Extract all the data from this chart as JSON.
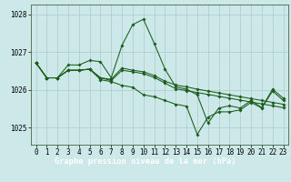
{
  "title": "Graphe pression niveau de la mer (hPa)",
  "bg_color": "#cce8e8",
  "grid_color": "#aacccc",
  "line_color": "#1a5c1a",
  "xlim": [
    -0.5,
    23.5
  ],
  "ylim": [
    1024.55,
    1028.25
  ],
  "yticks": [
    1025,
    1026,
    1027,
    1028
  ],
  "xticks": [
    0,
    1,
    2,
    3,
    4,
    5,
    6,
    7,
    8,
    9,
    10,
    11,
    12,
    13,
    14,
    15,
    16,
    17,
    18,
    19,
    20,
    21,
    22,
    23
  ],
  "series": [
    [
      1026.72,
      1026.32,
      1026.32,
      1026.66,
      1026.66,
      1026.78,
      1026.75,
      1026.32,
      1027.18,
      1027.73,
      1027.87,
      1027.23,
      1026.55,
      1026.08,
      1026.02,
      1025.87,
      1025.12,
      1025.52,
      1025.58,
      1025.52,
      1025.72,
      1025.53,
      1026.02,
      1025.78
    ],
    [
      1026.72,
      1026.32,
      1026.32,
      1026.52,
      1026.52,
      1026.55,
      1026.32,
      1026.28,
      1026.58,
      1026.52,
      1026.48,
      1026.38,
      1026.23,
      1026.13,
      1026.08,
      1026.02,
      1025.97,
      1025.92,
      1025.87,
      1025.82,
      1025.77,
      1025.72,
      1025.67,
      1025.62
    ],
    [
      1026.72,
      1026.32,
      1026.32,
      1026.52,
      1026.52,
      1026.55,
      1026.32,
      1026.25,
      1026.52,
      1026.48,
      1026.43,
      1026.33,
      1026.18,
      1026.03,
      1025.98,
      1025.93,
      1025.88,
      1025.83,
      1025.78,
      1025.73,
      1025.68,
      1025.63,
      1025.58,
      1025.53
    ],
    [
      1026.72,
      1026.32,
      1026.32,
      1026.52,
      1026.52,
      1026.55,
      1026.27,
      1026.22,
      1026.12,
      1026.07,
      1025.87,
      1025.82,
      1025.72,
      1025.62,
      1025.57,
      1024.82,
      1025.28,
      1025.42,
      1025.42,
      1025.47,
      1025.67,
      1025.52,
      1025.97,
      1025.72
    ]
  ],
  "marker": "D",
  "marker_size": 1.8,
  "linewidth": 0.75,
  "tick_fontsize": 5.5,
  "label_fontsize": 6.2,
  "bottom_bar_color": "#2d5a1b",
  "bottom_text_color": "#ffffff",
  "fig_width": 3.2,
  "fig_height": 2.0,
  "dpi": 100
}
